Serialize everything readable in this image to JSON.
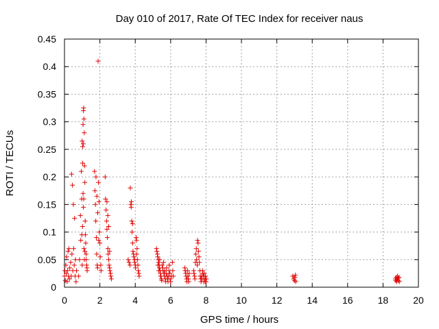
{
  "chart_data": {
    "type": "scatter",
    "title": "Day 010 of 2017, Rate Of TEC Index for receiver naus",
    "xlabel": "GPS time / hours",
    "ylabel": "ROTI / TECUs",
    "xlim": [
      0,
      20
    ],
    "ylim": [
      0,
      0.45
    ],
    "x_ticks": [
      0,
      2,
      4,
      6,
      8,
      10,
      12,
      14,
      16,
      18,
      20
    ],
    "y_ticks": [
      0,
      0.05,
      0.1,
      0.15,
      0.2,
      0.25,
      0.3,
      0.35,
      0.4,
      0.45
    ],
    "x_tick_labels": [
      "0",
      "2",
      "4",
      "6",
      "8",
      "10",
      "12",
      "14",
      "16",
      "18",
      "20"
    ],
    "y_tick_labels": [
      "0",
      "0.05",
      "0.1",
      "0.15",
      "0.2",
      "0.25",
      "0.3",
      "0.35",
      "0.4",
      "0.45"
    ],
    "grid": true,
    "marker": "+",
    "color": "#e00000",
    "series": [
      {
        "points": [
          [
            0.0,
            0.02
          ],
          [
            0.02,
            0.03
          ],
          [
            0.05,
            0.012
          ],
          [
            0.08,
            0.04
          ],
          [
            0.1,
            0.025
          ],
          [
            0.12,
            0.055
          ],
          [
            0.15,
            0.01
          ],
          [
            0.18,
            0.03
          ],
          [
            0.2,
            0.065
          ],
          [
            0.22,
            0.02
          ],
          [
            0.25,
            0.07
          ],
          [
            0.28,
            0.015
          ],
          [
            0.3,
            0.035
          ],
          [
            0.35,
            0.045
          ],
          [
            0.38,
            0.02
          ],
          [
            0.4,
            0.205
          ],
          [
            0.42,
            0.06
          ],
          [
            0.45,
            0.185
          ],
          [
            0.47,
            0.03
          ],
          [
            0.5,
            0.15
          ],
          [
            0.52,
            0.07
          ],
          [
            0.55,
            0.04
          ],
          [
            0.57,
            0.125
          ],
          [
            0.6,
            0.02
          ],
          [
            0.62,
            0.05
          ],
          [
            0.65,
            0.01
          ],
          [
            0.68,
            0.03
          ],
          [
            0.8,
            0.02
          ],
          [
            0.85,
            0.05
          ],
          [
            0.9,
            0.13
          ],
          [
            0.92,
            0.085
          ],
          [
            0.95,
            0.21
          ],
          [
            0.97,
            0.16
          ],
          [
            1.0,
            0.265
          ],
          [
            1.02,
            0.225
          ],
          [
            1.05,
            0.295
          ],
          [
            1.07,
            0.32
          ],
          [
            1.08,
            0.325
          ],
          [
            1.1,
            0.305
          ],
          [
            1.12,
            0.28
          ],
          [
            1.13,
            0.22
          ],
          [
            1.15,
            0.19
          ],
          [
            1.17,
            0.12
          ],
          [
            1.18,
            0.095
          ],
          [
            1.2,
            0.08
          ],
          [
            1.22,
            0.06
          ],
          [
            1.23,
            0.05
          ],
          [
            1.25,
            0.04
          ],
          [
            1.27,
            0.035
          ],
          [
            1.28,
            0.03
          ],
          [
            1.0,
            0.04
          ],
          [
            1.02,
            0.11
          ],
          [
            1.05,
            0.17
          ],
          [
            1.07,
            0.145
          ],
          [
            1.1,
            0.07
          ],
          [
            1.12,
            0.05
          ],
          [
            1.15,
            0.065
          ],
          [
            0.98,
            0.095
          ],
          [
            1.03,
            0.255
          ],
          [
            1.06,
            0.26
          ],
          [
            1.09,
            0.16
          ],
          [
            1.7,
            0.21
          ],
          [
            1.72,
            0.175
          ],
          [
            1.75,
            0.15
          ],
          [
            1.77,
            0.12
          ],
          [
            1.8,
            0.09
          ],
          [
            1.82,
            0.06
          ],
          [
            1.85,
            0.04
          ],
          [
            1.87,
            0.035
          ],
          [
            1.9,
            0.41
          ],
          [
            1.92,
            0.19
          ],
          [
            1.95,
            0.155
          ],
          [
            1.97,
            0.1
          ],
          [
            2.0,
            0.08
          ],
          [
            2.02,
            0.055
          ],
          [
            2.05,
            0.04
          ],
          [
            2.07,
            0.03
          ],
          [
            1.78,
            0.2
          ],
          [
            1.83,
            0.165
          ],
          [
            1.88,
            0.135
          ],
          [
            1.93,
            0.085
          ],
          [
            2.3,
            0.2
          ],
          [
            2.32,
            0.16
          ],
          [
            2.35,
            0.14
          ],
          [
            2.38,
            0.12
          ],
          [
            2.4,
            0.105
          ],
          [
            2.42,
            0.09
          ],
          [
            2.45,
            0.07
          ],
          [
            2.47,
            0.06
          ],
          [
            2.5,
            0.05
          ],
          [
            2.52,
            0.04
          ],
          [
            2.55,
            0.035
          ],
          [
            2.57,
            0.03
          ],
          [
            2.6,
            0.025
          ],
          [
            2.62,
            0.02
          ],
          [
            2.65,
            0.015
          ],
          [
            2.4,
            0.155
          ],
          [
            2.45,
            0.13
          ],
          [
            2.5,
            0.11
          ],
          [
            2.55,
            0.065
          ],
          [
            3.6,
            0.05
          ],
          [
            3.65,
            0.045
          ],
          [
            3.7,
            0.04
          ],
          [
            3.72,
            0.18
          ],
          [
            3.75,
            0.15
          ],
          [
            3.77,
            0.145
          ],
          [
            3.8,
            0.12
          ],
          [
            3.82,
            0.1
          ],
          [
            3.85,
            0.08
          ],
          [
            3.87,
            0.065
          ],
          [
            3.9,
            0.06
          ],
          [
            3.92,
            0.055
          ],
          [
            3.95,
            0.05
          ],
          [
            3.97,
            0.045
          ],
          [
            4.0,
            0.04
          ],
          [
            4.02,
            0.035
          ],
          [
            4.05,
            0.09
          ],
          [
            4.07,
            0.085
          ],
          [
            4.1,
            0.07
          ],
          [
            4.12,
            0.05
          ],
          [
            4.15,
            0.04
          ],
          [
            4.17,
            0.03
          ],
          [
            4.2,
            0.025
          ],
          [
            4.22,
            0.02
          ],
          [
            3.78,
            0.155
          ],
          [
            3.85,
            0.115
          ],
          [
            4.08,
            0.06
          ],
          [
            5.2,
            0.07
          ],
          [
            5.22,
            0.065
          ],
          [
            5.25,
            0.06
          ],
          [
            5.27,
            0.055
          ],
          [
            5.3,
            0.05
          ],
          [
            5.32,
            0.045
          ],
          [
            5.35,
            0.04
          ],
          [
            5.37,
            0.035
          ],
          [
            5.4,
            0.03
          ],
          [
            5.42,
            0.025
          ],
          [
            5.45,
            0.02
          ],
          [
            5.47,
            0.015
          ],
          [
            5.5,
            0.012
          ],
          [
            5.52,
            0.04
          ],
          [
            5.55,
            0.035
          ],
          [
            5.57,
            0.03
          ],
          [
            5.6,
            0.045
          ],
          [
            5.62,
            0.025
          ],
          [
            5.65,
            0.02
          ],
          [
            5.67,
            0.03
          ],
          [
            5.7,
            0.015
          ],
          [
            5.72,
            0.01
          ],
          [
            5.75,
            0.025
          ],
          [
            5.77,
            0.035
          ],
          [
            5.8,
            0.02
          ],
          [
            5.82,
            0.015
          ],
          [
            5.85,
            0.01
          ],
          [
            5.87,
            0.02
          ],
          [
            5.9,
            0.03
          ],
          [
            5.92,
            0.04
          ],
          [
            5.95,
            0.025
          ],
          [
            5.97,
            0.015
          ],
          [
            6.0,
            0.01
          ],
          [
            6.05,
            0.02
          ],
          [
            6.1,
            0.045
          ],
          [
            6.12,
            0.03
          ],
          [
            6.15,
            0.02
          ],
          [
            5.28,
            0.04
          ],
          [
            5.33,
            0.03
          ],
          [
            5.38,
            0.05
          ],
          [
            5.43,
            0.02
          ],
          [
            6.8,
            0.035
          ],
          [
            6.82,
            0.03
          ],
          [
            6.85,
            0.025
          ],
          [
            6.87,
            0.02
          ],
          [
            6.9,
            0.015
          ],
          [
            6.92,
            0.01
          ],
          [
            6.95,
            0.03
          ],
          [
            6.97,
            0.02
          ],
          [
            7.0,
            0.015
          ],
          [
            7.02,
            0.01
          ],
          [
            7.05,
            0.025
          ],
          [
            7.3,
            0.03
          ],
          [
            7.32,
            0.025
          ],
          [
            7.35,
            0.02
          ],
          [
            7.37,
            0.015
          ],
          [
            7.4,
            0.045
          ],
          [
            7.42,
            0.06
          ],
          [
            7.45,
            0.07
          ],
          [
            7.47,
            0.05
          ],
          [
            7.5,
            0.04
          ],
          [
            7.52,
            0.085
          ],
          [
            7.55,
            0.08
          ],
          [
            7.57,
            0.065
          ],
          [
            7.6,
            0.055
          ],
          [
            7.62,
            0.045
          ],
          [
            7.65,
            0.03
          ],
          [
            7.67,
            0.02
          ],
          [
            7.7,
            0.015
          ],
          [
            7.72,
            0.01
          ],
          [
            7.75,
            0.02
          ],
          [
            7.77,
            0.015
          ],
          [
            7.8,
            0.03
          ],
          [
            7.82,
            0.025
          ],
          [
            7.85,
            0.02
          ],
          [
            7.87,
            0.01
          ],
          [
            7.9,
            0.025
          ],
          [
            7.92,
            0.015
          ],
          [
            7.95,
            0.01
          ],
          [
            7.97,
            0.02
          ],
          [
            8.0,
            0.01
          ],
          [
            8.02,
            0.015
          ],
          [
            12.9,
            0.02
          ],
          [
            12.95,
            0.015
          ],
          [
            13.0,
            0.012
          ],
          [
            13.02,
            0.018
          ],
          [
            13.05,
            0.022
          ],
          [
            13.07,
            0.01
          ],
          [
            18.7,
            0.015
          ],
          [
            18.72,
            0.012
          ],
          [
            18.75,
            0.018
          ],
          [
            18.77,
            0.01
          ],
          [
            18.8,
            0.014
          ],
          [
            18.82,
            0.02
          ],
          [
            18.85,
            0.016
          ],
          [
            18.87,
            0.012
          ],
          [
            18.9,
            0.018
          ],
          [
            18.92,
            0.01
          ]
        ]
      }
    ]
  }
}
